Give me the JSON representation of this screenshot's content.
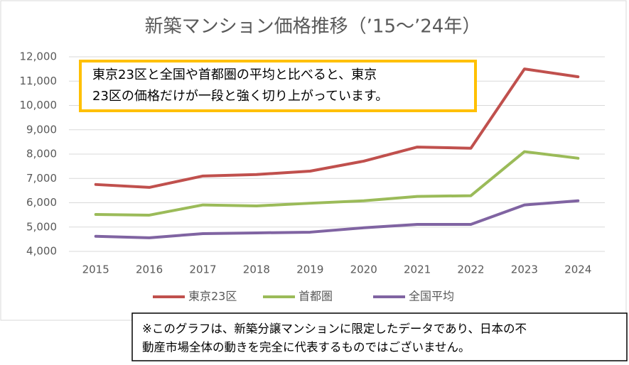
{
  "chart_data": {
    "type": "line",
    "title": "新築マンション価格推移（’15～’24年）",
    "categories": [
      "2015",
      "2016",
      "2017",
      "2018",
      "2019",
      "2020",
      "2021",
      "2022",
      "2023",
      "2024"
    ],
    "series": [
      {
        "name": "東京23区",
        "color": "#c0504d",
        "values": [
          6750,
          6630,
          7100,
          7160,
          7300,
          7710,
          8290,
          8240,
          11500,
          11180
        ]
      },
      {
        "name": "首都圏",
        "color": "#9bbb59",
        "values": [
          5520,
          5490,
          5910,
          5870,
          5980,
          6080,
          6260,
          6290,
          8100,
          7830
        ]
      },
      {
        "name": "全国平均",
        "color": "#8064a2",
        "values": [
          4620,
          4560,
          4730,
          4760,
          4790,
          4970,
          5110,
          5110,
          5910,
          6080
        ]
      }
    ],
    "ylim": [
      4000,
      12000
    ],
    "yticks": [
      {
        "value": 4000,
        "label": "4,000"
      },
      {
        "value": 5000,
        "label": "5,000"
      },
      {
        "value": 6000,
        "label": "6,000"
      },
      {
        "value": 7000,
        "label": "7,000"
      },
      {
        "value": 8000,
        "label": "8,000"
      },
      {
        "value": 9000,
        "label": "9,000"
      },
      {
        "value": 10000,
        "label": "10,000"
      },
      {
        "value": 11000,
        "label": "11,000"
      },
      {
        "value": 12000,
        "label": "12,000"
      }
    ],
    "grid": true,
    "legend": "bottom",
    "annotation": [
      "東京23区と全国や首都圏の平均と比べると、東京",
      "23区の価格だけが一段と強く切り上がっています。"
    ],
    "note": [
      "※このグラフは、新築分譲マンションに限定したデータであり、日本の不",
      "動産市場全体の動きを完全に代表するものではございません。"
    ]
  }
}
